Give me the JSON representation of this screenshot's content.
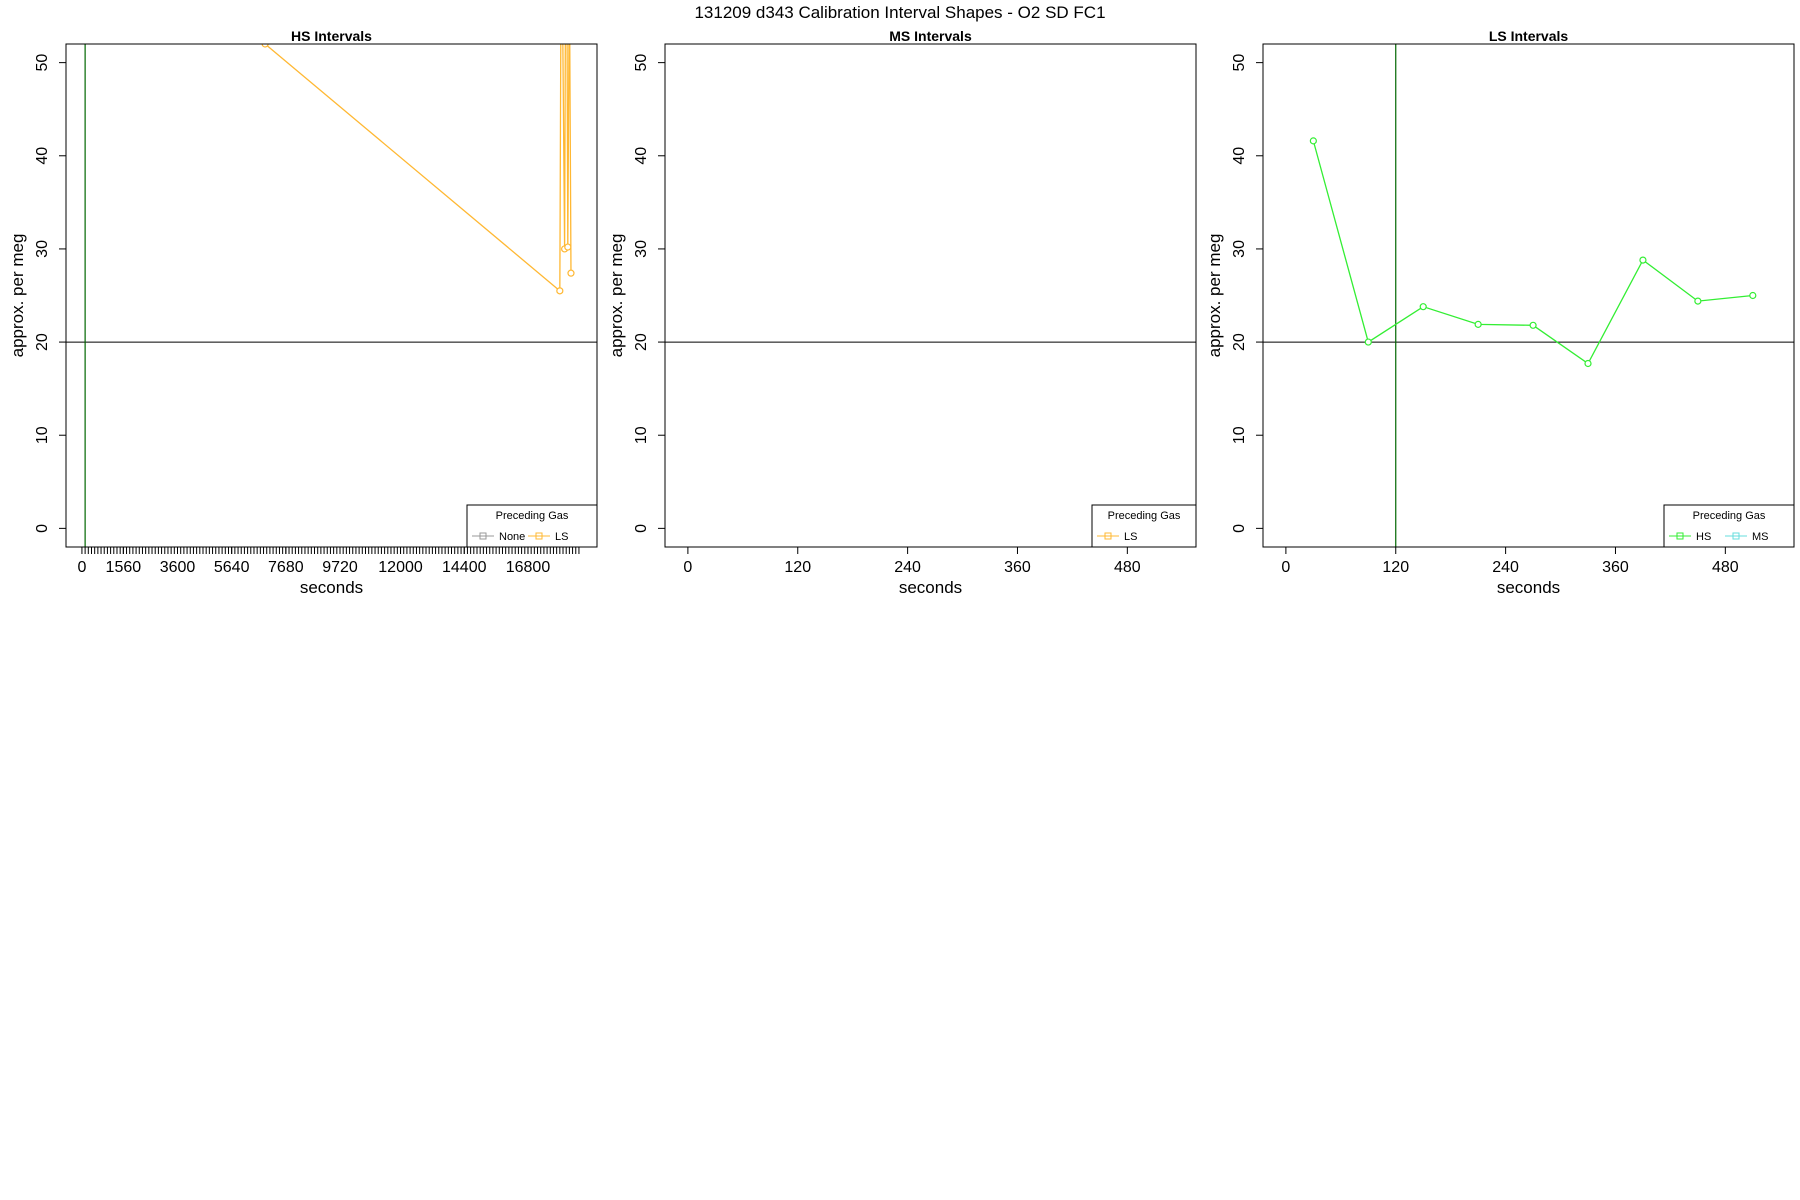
{
  "page_title": "131209   d343   Calibration Interval Shapes - O2 SD FC1",
  "colors": {
    "None": "#999999",
    "LS": "#ffb833",
    "HS": "#33ee33",
    "MS": "#66dddd",
    "frame": "#000000",
    "refline": "#000000",
    "vline": "#006600"
  },
  "chart_data": [
    {
      "type": "line",
      "title": "HS Intervals",
      "xlabel": "seconds",
      "ylabel": "approx. per meg",
      "xlim": [
        -600,
        19400
      ],
      "ylim": [
        -2,
        52
      ],
      "x_ticks": [
        0,
        1560,
        3600,
        5640,
        7680,
        9720,
        12000,
        14400,
        16800
      ],
      "x_minor_ticks": {
        "start": 120,
        "end": 18720,
        "step": 120
      },
      "y_ticks": [
        0,
        10,
        20,
        30,
        40,
        50
      ],
      "hline": 20,
      "vline": 120,
      "legend": {
        "title": "Preceding Gas",
        "position": "bottom-right",
        "entries": [
          "None",
          "LS"
        ]
      },
      "series": [
        {
          "name": "LS",
          "points": [
            [
              6900,
              52.0
            ],
            [
              18000,
              25.5
            ],
            [
              18060,
              70.0
            ],
            [
              18180,
              30.0
            ],
            [
              18240,
              80.0
            ],
            [
              18300,
              30.2
            ],
            [
              18360,
              60.0
            ],
            [
              18420,
              27.4
            ]
          ]
        }
      ]
    },
    {
      "type": "line",
      "title": "MS Intervals",
      "xlabel": "seconds",
      "ylabel": "approx. per meg",
      "xlim": [
        -25,
        555
      ],
      "ylim": [
        -2,
        52
      ],
      "x_ticks": [
        0,
        120,
        240,
        360,
        480
      ],
      "y_ticks": [
        0,
        10,
        20,
        30,
        40,
        50
      ],
      "hline": 20,
      "legend": {
        "title": "Preceding Gas",
        "position": "bottom-right",
        "entries": [
          "LS"
        ]
      },
      "series": []
    },
    {
      "type": "line",
      "title": "LS Intervals",
      "xlabel": "seconds",
      "ylabel": "approx. per meg",
      "xlim": [
        -25,
        555
      ],
      "ylim": [
        -2,
        52
      ],
      "x_ticks": [
        0,
        120,
        240,
        360,
        480
      ],
      "y_ticks": [
        0,
        10,
        20,
        30,
        40,
        50
      ],
      "hline": 20,
      "vline": 120,
      "legend": {
        "title": "Preceding Gas",
        "position": "bottom-right",
        "entries": [
          "HS",
          "MS"
        ]
      },
      "series": [
        {
          "name": "HS",
          "points": [
            [
              30,
              41.6
            ],
            [
              90,
              20.0
            ],
            [
              150,
              23.8
            ],
            [
              210,
              21.9
            ],
            [
              270,
              21.8
            ],
            [
              330,
              17.7
            ],
            [
              390,
              28.8
            ],
            [
              450,
              24.4
            ],
            [
              510,
              25.0
            ]
          ]
        }
      ]
    }
  ]
}
